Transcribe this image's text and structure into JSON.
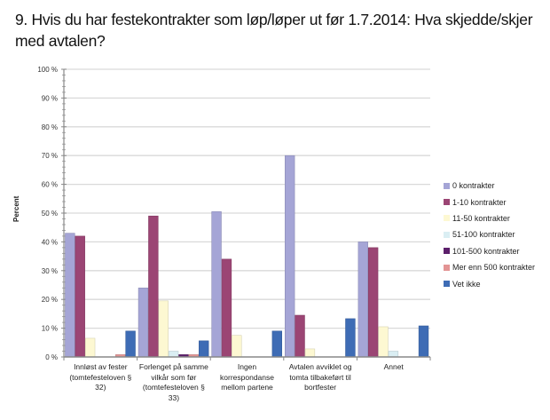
{
  "title": "9. Hvis du har festekontrakter som løp/løper ut før 1.7.2014: Hva skjedde/skjer med avtalen?",
  "chart_data": {
    "type": "bar",
    "title": "9. Hvis du har festekontrakter som løp/løper ut før 1.7.2014: Hva skjedde/skjer med avtalen?",
    "xlabel": "",
    "ylabel": "Percent",
    "ylim": [
      0,
      100
    ],
    "yticks": [
      "0 %",
      "10 %",
      "20 %",
      "30 %",
      "40 %",
      "50 %",
      "60 %",
      "70 %",
      "80 %",
      "90 %",
      "100 %"
    ],
    "grid": true,
    "legend_position": "right",
    "categories": [
      "Innløst av fester (tomtefesteloven § 32)",
      "Forlenget på samme vilkår som før (tomtefesteloven § 33)",
      "Ingen korrespondanse mellom partene",
      "Avtalen avviklet og tomta tilbakeført til bortfester",
      "Annet"
    ],
    "category_lines": [
      [
        "Innløst av fester",
        "(tomtefesteloven §",
        "32)"
      ],
      [
        "Forlenget på samme",
        "vilkår som før",
        "(tomtefesteloven §",
        "33)"
      ],
      [
        "Ingen",
        "korrespondanse",
        "mellom partene"
      ],
      [
        "Avtalen avviklet og",
        "tomta tilbakeført til",
        "bortfester"
      ],
      [
        "Annet"
      ]
    ],
    "series": [
      {
        "name": "0 kontrakter",
        "color": "#a5a5d6",
        "values": [
          43,
          24,
          50.5,
          70,
          40
        ]
      },
      {
        "name": "1-10 kontrakter",
        "color": "#9b4574",
        "values": [
          42,
          49,
          34,
          14.5,
          38
        ]
      },
      {
        "name": "11-50 kontrakter",
        "color": "#fdf8d2",
        "values": [
          6.5,
          19.5,
          7.5,
          2.8,
          10.5
        ]
      },
      {
        "name": "51-100 kontrakter",
        "color": "#daeef3",
        "values": [
          0,
          2,
          0,
          0,
          2
        ]
      },
      {
        "name": "101-500 kontrakter",
        "color": "#5c1f6b",
        "values": [
          0,
          0.8,
          0,
          0,
          0
        ]
      },
      {
        "name": "Mer enn 500 kontrakter",
        "color": "#e39494",
        "values": [
          0.8,
          0.8,
          0,
          0,
          0
        ]
      },
      {
        "name": "Vet ikke",
        "color": "#3e6cb5",
        "values": [
          9,
          5.6,
          9,
          13.3,
          10.8
        ]
      }
    ]
  }
}
